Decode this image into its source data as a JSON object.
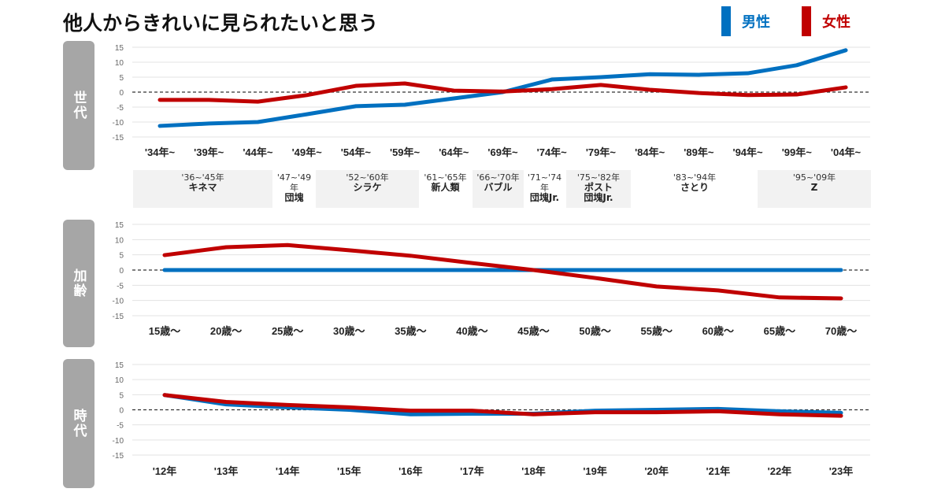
{
  "title": "他人からきれいに見られたいと思う",
  "legend": [
    {
      "label": "男性",
      "color": "#0070c0"
    },
    {
      "label": "女性",
      "color": "#c00000"
    }
  ],
  "generations": [
    {
      "years": "'36~'45年",
      "name": "キネマ",
      "shaded": true
    },
    {
      "years": "'47~'49年",
      "name": "団塊",
      "shaded": false
    },
    {
      "years": "'52~'60年",
      "name": "シラケ",
      "shaded": true
    },
    {
      "years": "'61~'65年",
      "name": "新人類",
      "shaded": false
    },
    {
      "years": "'66~'70年",
      "name": "バブル",
      "shaded": true
    },
    {
      "years": "'71~'74年",
      "name": "団塊Jr.",
      "shaded": false
    },
    {
      "years": "'75~'82年",
      "name": "ポスト\n団塊Jr.",
      "shaded": true
    },
    {
      "years": "'83~'94年",
      "name": "さとり",
      "shaded": false
    },
    {
      "years": "'95~'09年",
      "name": "Z",
      "shaded": true
    }
  ],
  "chart_data": [
    {
      "type": "line",
      "panel_label": "世代",
      "ylim": [
        -15,
        15
      ],
      "yticks": [
        15,
        10,
        5,
        0,
        -5,
        -10,
        -15
      ],
      "categories": [
        "'34年~",
        "'39年~",
        "'44年~",
        "'49年~",
        "'54年~",
        "'59年~",
        "'64年~",
        "'69年~",
        "'74年~",
        "'79年~",
        "'84年~",
        "'89年~",
        "'94年~",
        "'99年~",
        "'04年~"
      ],
      "series": [
        {
          "name": "男性",
          "values": [
            -11.3,
            -10.5,
            -10,
            -7.4,
            -4.7,
            -4.2,
            -2.1,
            0,
            4.2,
            5,
            6,
            5.8,
            6.3,
            9,
            14
          ]
        },
        {
          "name": "女性",
          "values": [
            -2.6,
            -2.6,
            -3.2,
            -1,
            2.1,
            2.9,
            0.5,
            0.2,
            1,
            2.4,
            0.8,
            -0.3,
            -1,
            -0.8,
            1.6
          ]
        }
      ]
    },
    {
      "type": "line",
      "panel_label": "加齢",
      "ylim": [
        -15,
        15
      ],
      "yticks": [
        15,
        10,
        5,
        0,
        -5,
        -10,
        -15
      ],
      "categories": [
        "15歳～",
        "20歳～",
        "25歳～",
        "30歳～",
        "35歳～",
        "40歳～",
        "45歳～",
        "50歳～",
        "55歳～",
        "60歳～",
        "65歳～",
        "70歳～"
      ],
      "series": [
        {
          "name": "男性",
          "values": [
            0,
            0,
            0,
            0,
            0,
            0,
            0,
            0,
            0,
            0,
            0,
            0
          ]
        },
        {
          "name": "女性",
          "values": [
            4.9,
            7.5,
            8.2,
            6.5,
            4.7,
            2.3,
            0,
            -2.6,
            -5.4,
            -6.7,
            -9,
            -9.3
          ]
        }
      ]
    },
    {
      "type": "line",
      "panel_label": "時代",
      "ylim": [
        -15,
        15
      ],
      "yticks": [
        15,
        10,
        5,
        0,
        -5,
        -10,
        -15
      ],
      "categories": [
        "'12年",
        "'13年",
        "'14年",
        "'15年",
        "'16年",
        "'17年",
        "'18年",
        "'19年",
        "'20年",
        "'21年",
        "'22年",
        "'23年"
      ],
      "series": [
        {
          "name": "男性",
          "values": [
            4.9,
            1.8,
            0.8,
            0,
            -1.5,
            -1.3,
            -1.3,
            -0.3,
            0,
            0.3,
            -0.5,
            -1
          ]
        },
        {
          "name": "女性",
          "values": [
            4.9,
            2.6,
            1.6,
            0.8,
            -0.3,
            -0.3,
            -1.5,
            -0.8,
            -0.8,
            -0.5,
            -1.5,
            -2
          ]
        }
      ]
    }
  ]
}
